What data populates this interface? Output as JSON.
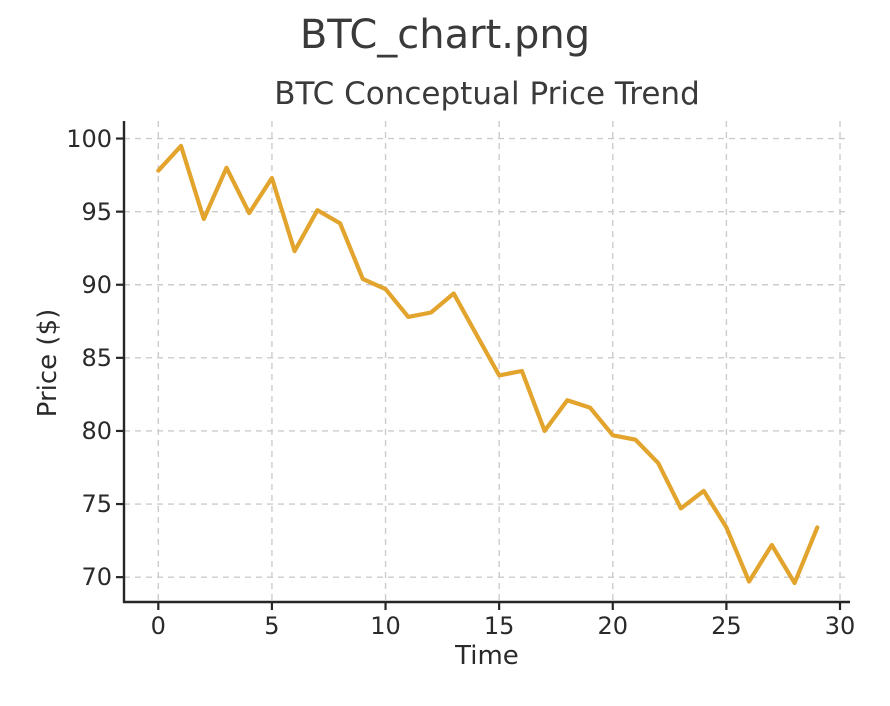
{
  "window": {
    "title": "BTC_chart.png"
  },
  "chart_data": {
    "type": "line",
    "title": "BTC Conceptual Price Trend",
    "xlabel": "Time",
    "ylabel": "Price ($)",
    "x": [
      0,
      1,
      2,
      3,
      4,
      5,
      6,
      7,
      8,
      9,
      10,
      11,
      12,
      13,
      14,
      15,
      16,
      17,
      18,
      19,
      20,
      21,
      22,
      23,
      24,
      25,
      26,
      27,
      28,
      29
    ],
    "values": [
      97.8,
      99.5,
      94.5,
      98.0,
      94.9,
      97.3,
      92.3,
      95.1,
      94.2,
      90.4,
      89.7,
      87.8,
      88.1,
      89.4,
      86.6,
      83.8,
      84.1,
      80.0,
      82.1,
      81.6,
      79.7,
      79.4,
      77.8,
      74.7,
      75.9,
      73.4,
      69.7,
      72.2,
      69.6,
      73.4
    ],
    "xticks": [
      0,
      5,
      10,
      15,
      20,
      25,
      30
    ],
    "yticks": [
      70,
      75,
      80,
      85,
      90,
      95,
      100
    ],
    "xlim": [
      -1.51,
      30.44
    ],
    "ylim": [
      68.3,
      101.2
    ],
    "grid": "dashed",
    "legend": "none",
    "style": {
      "line_color": "#E2A42C",
      "grid_color": "#cccccc",
      "axis_color": "#262626",
      "text_color": "#2a2a2a",
      "title_color": "#3a3a3a",
      "background": "#ffffff"
    }
  }
}
